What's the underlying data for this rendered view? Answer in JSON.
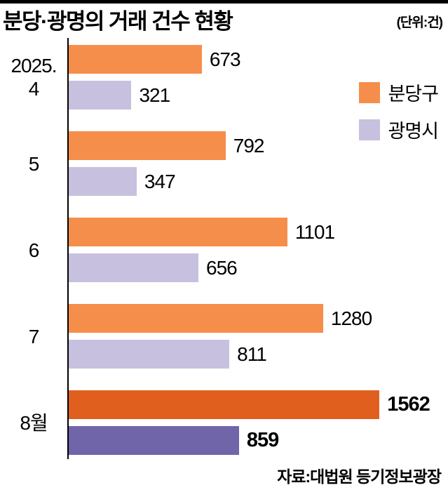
{
  "header": {
    "title": "분당·광명의 거래 건수 현황",
    "unit_label": "(단위:건)"
  },
  "legend": [
    {
      "label": "분당구",
      "color": "#f68e4b"
    },
    {
      "label": "광명시",
      "color": "#c7c0de"
    }
  ],
  "source": "자료:대법원 등기정보광장",
  "chart_data": {
    "type": "bar",
    "orientation": "horizontal",
    "title": "분당·광명의 거래 건수 현황",
    "unit": "건",
    "categories": [
      "2025.4",
      "5",
      "6",
      "7",
      "8월"
    ],
    "category_display": [
      [
        "2025.",
        "4"
      ],
      [
        "5"
      ],
      [
        "6"
      ],
      [
        "7"
      ],
      [
        "8월"
      ]
    ],
    "series": [
      {
        "name": "분당구",
        "values": [
          673,
          792,
          1101,
          1280,
          1562
        ],
        "color": "#f68e4b",
        "highlight_color": "#e05f1f"
      },
      {
        "name": "광명시",
        "values": [
          321,
          347,
          656,
          811,
          859
        ],
        "color": "#c7c0de",
        "highlight_color": "#7165aa"
      }
    ],
    "highlight_index": 4,
    "xlim": [
      0,
      1562
    ],
    "grid": false,
    "legend_position": "top-right",
    "source": "자료:대법원 등기정보광장"
  }
}
